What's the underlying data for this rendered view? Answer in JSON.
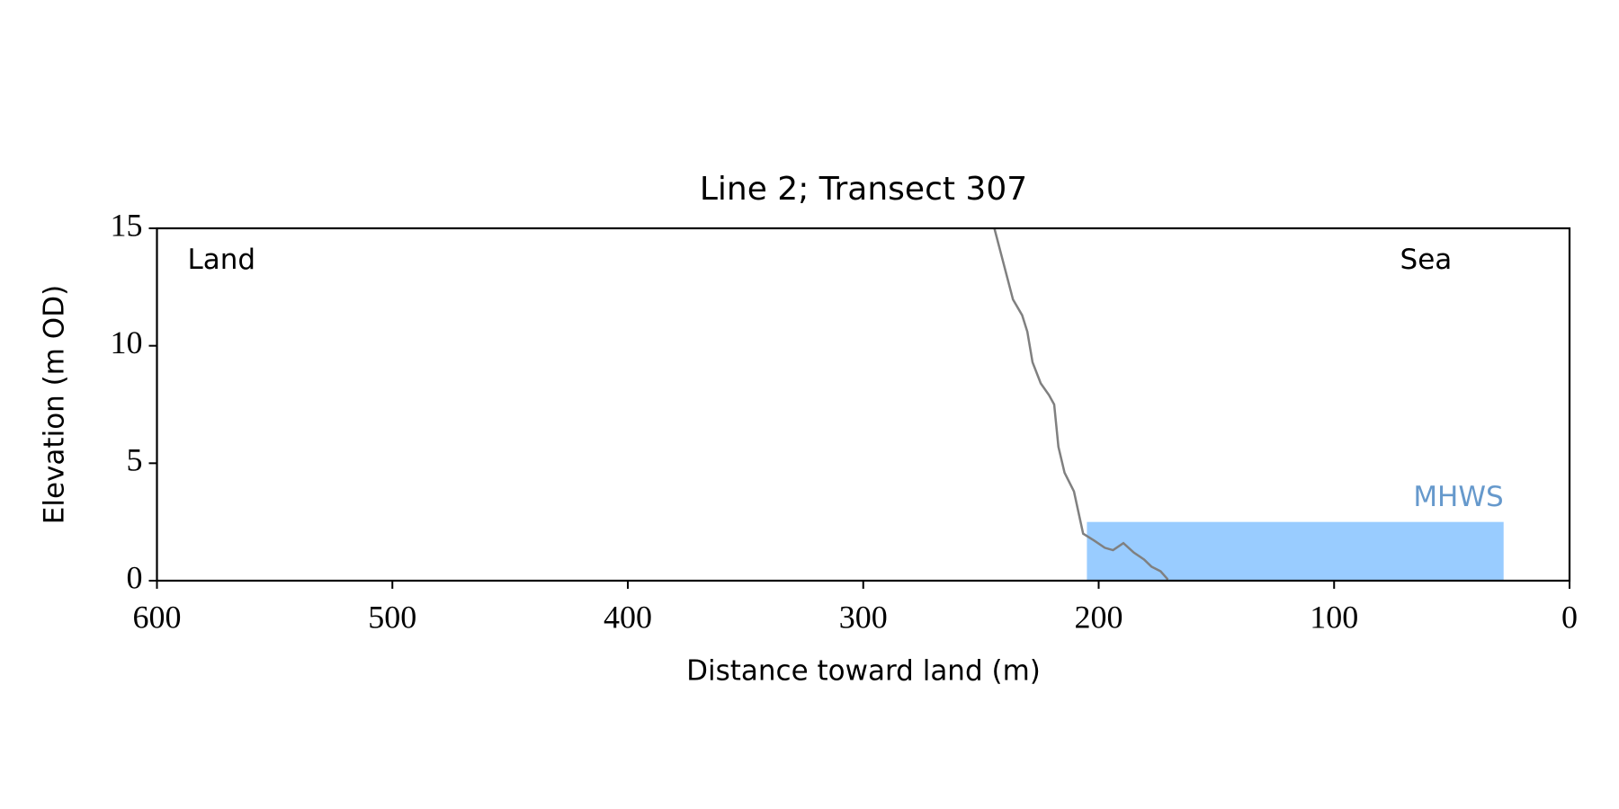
{
  "chart_data": {
    "type": "line",
    "title": "Line 2; Transect 307",
    "x_label": "Distance toward land (m)",
    "y_label": "Elevation (m OD)",
    "x": [
      244.3,
      236.4,
      232.5,
      230.3,
      228.1,
      224.6,
      221.1,
      218.9,
      217.1,
      214.5,
      210.5,
      206.6,
      201.8,
      197.4,
      193.9,
      189.5,
      185.1,
      180.7,
      177.6,
      173.7,
      170.6
    ],
    "series": [
      {
        "color": "#808080",
        "values": [
          15,
          11.97,
          11.3,
          10.6,
          9.3,
          8.4,
          7.9,
          7.5,
          5.7,
          4.6,
          3.8,
          2.0,
          1.7,
          1.4,
          1.3,
          1.6,
          1.2,
          0.9,
          0.6,
          0.4,
          0.05
        ]
      }
    ],
    "mhws": {
      "label": "MHWS",
      "value": 2.5,
      "x": [
        205,
        28
      ],
      "color": "#99ccff",
      "label_color": "#6699cc"
    },
    "annotations": [
      {
        "text": "Land",
        "x": 587,
        "y": 13.6
      },
      {
        "text": "Sea",
        "x": 72,
        "y": 13.6
      }
    ],
    "xlim": [
      600,
      0
    ],
    "ylim": [
      0,
      15
    ],
    "xticks": [
      600,
      500,
      400,
      300,
      200,
      100,
      0
    ],
    "yticks": [
      0,
      5,
      10,
      15
    ]
  }
}
